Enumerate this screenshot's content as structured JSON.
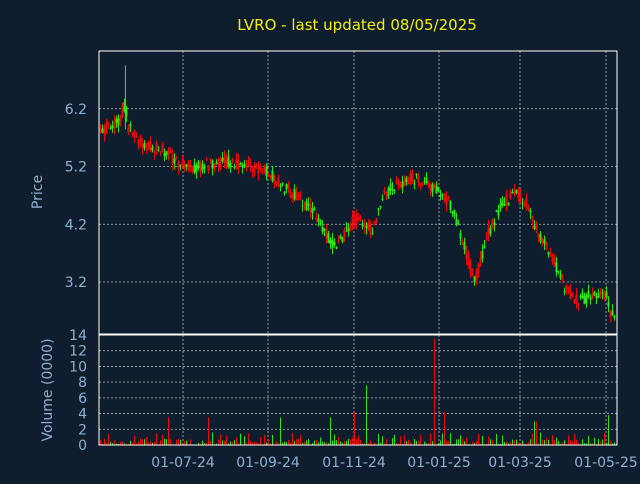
{
  "chart_data": [
    {
      "type": "candlestick",
      "title": "LVRO - last updated 08/05/2025",
      "ylabel": "Price",
      "y_ticks": [
        3.2,
        4.2,
        5.2,
        6.2
      ],
      "ylim": [
        2.3,
        7.2
      ],
      "y_bottom_label": "14",
      "x_tick_labels": [
        "01-07-24",
        "01-09-24",
        "01-11-24",
        "01-01-25",
        "01-03-25",
        "01-05-25"
      ],
      "grid": true,
      "colors": {
        "up": "#2ee61a",
        "down": "#e60e0e",
        "background": "#0f1e2e",
        "grid": "#d8d8d8",
        "title": "#f4ef10",
        "axis_text": "#8fb0cf"
      },
      "points": [
        {
          "x": "2024-04-15",
          "y": 5.9
        },
        {
          "x": "2024-05-01",
          "y": 5.8
        },
        {
          "x": "2024-05-15",
          "y": 5.95
        },
        {
          "x": "2024-05-20",
          "y": 6.3
        },
        {
          "x": "2024-05-22",
          "y": 5.9
        },
        {
          "x": "2024-06-01",
          "y": 5.6
        },
        {
          "x": "2024-06-15",
          "y": 5.5
        },
        {
          "x": "2024-07-01",
          "y": 5.2
        },
        {
          "x": "2024-07-15",
          "y": 5.2
        },
        {
          "x": "2024-08-01",
          "y": 5.3
        },
        {
          "x": "2024-08-15",
          "y": 5.25
        },
        {
          "x": "2024-09-01",
          "y": 5.1
        },
        {
          "x": "2024-09-15",
          "y": 4.8
        },
        {
          "x": "2024-10-01",
          "y": 4.5
        },
        {
          "x": "2024-10-10",
          "y": 4.1
        },
        {
          "x": "2024-10-20",
          "y": 3.8
        },
        {
          "x": "2024-11-01",
          "y": 4.3
        },
        {
          "x": "2024-11-15",
          "y": 4.1
        },
        {
          "x": "2024-11-20",
          "y": 4.6
        },
        {
          "x": "2024-12-01",
          "y": 4.9
        },
        {
          "x": "2024-12-15",
          "y": 5.0
        },
        {
          "x": "2025-01-01",
          "y": 4.8
        },
        {
          "x": "2025-01-10",
          "y": 4.5
        },
        {
          "x": "2025-01-20",
          "y": 3.8
        },
        {
          "x": "2025-01-27",
          "y": 3.2
        },
        {
          "x": "2025-02-05",
          "y": 4.0
        },
        {
          "x": "2025-02-15",
          "y": 4.5
        },
        {
          "x": "2025-02-25",
          "y": 4.8
        },
        {
          "x": "2025-03-05",
          "y": 4.6
        },
        {
          "x": "2025-03-15",
          "y": 4.0
        },
        {
          "x": "2025-03-25",
          "y": 3.6
        },
        {
          "x": "2025-04-01",
          "y": 3.1
        },
        {
          "x": "2025-04-10",
          "y": 2.9
        },
        {
          "x": "2025-04-20",
          "y": 2.95
        },
        {
          "x": "2025-05-01",
          "y": 3.0
        },
        {
          "x": "2025-05-05",
          "y": 2.6
        }
      ]
    },
    {
      "type": "bar",
      "ylabel": "Volume (0000)",
      "y_ticks": [
        0,
        2,
        4,
        6,
        8,
        10,
        12
      ],
      "ylim": [
        0,
        14
      ],
      "grid": true,
      "spikes": [
        {
          "x": "2024-06-20",
          "value": 3.5
        },
        {
          "x": "2024-07-20",
          "value": 3.5
        },
        {
          "x": "2024-09-10",
          "value": 3.5
        },
        {
          "x": "2024-10-15",
          "value": 3.5
        },
        {
          "x": "2024-11-01",
          "value": 4.2
        },
        {
          "x": "2024-11-10",
          "value": 7.6
        },
        {
          "x": "2024-12-29",
          "value": 13.5
        },
        {
          "x": "2025-01-05",
          "value": 4.2
        },
        {
          "x": "2025-03-12",
          "value": 3.0
        },
        {
          "x": "2025-05-03",
          "value": 3.8
        }
      ]
    }
  ]
}
